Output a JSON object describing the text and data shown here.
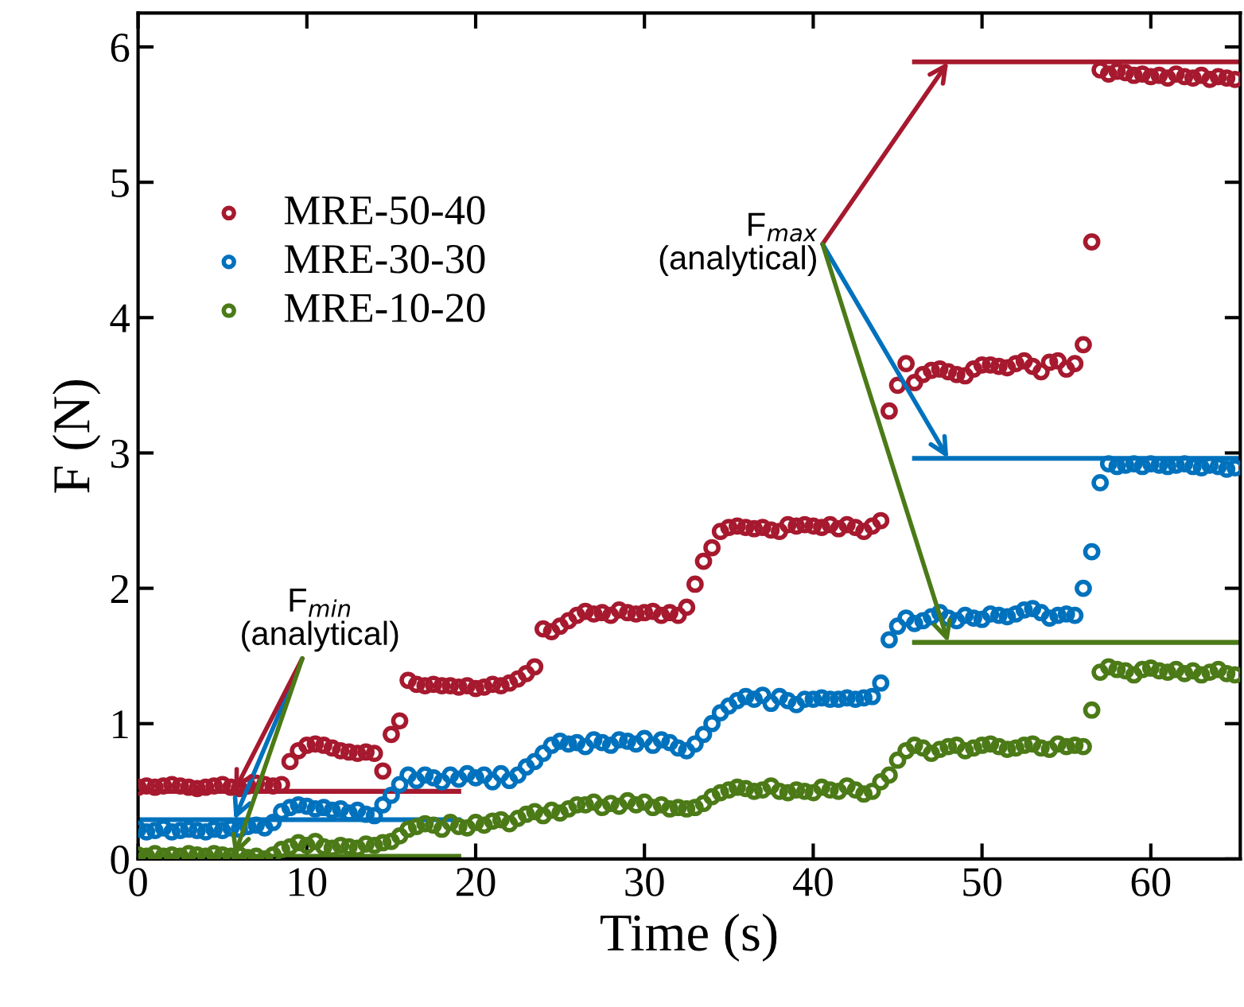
{
  "chart_data": {
    "type": "scatter",
    "xlabel": "Time (s)",
    "ylabel": "F (N)",
    "xlim": [
      0,
      65.3
    ],
    "ylim": [
      0,
      6.25
    ],
    "xticks": [
      0,
      10,
      20,
      30,
      40,
      50,
      60
    ],
    "yticks": [
      0,
      1,
      2,
      3,
      4,
      5,
      6
    ],
    "grid": false,
    "legend": "top left",
    "marker": "circle",
    "x": [
      0,
      0.5,
      1,
      1.5,
      2,
      2.5,
      3,
      3.5,
      4,
      4.5,
      5,
      5.5,
      6,
      6.5,
      7,
      7.5,
      8,
      8.5,
      9,
      9.5,
      10,
      10.5,
      11,
      11.5,
      12,
      12.5,
      13,
      13.5,
      14,
      14.5,
      15,
      15.5,
      16,
      16.5,
      17,
      17.5,
      18,
      18.5,
      19,
      19.5,
      20,
      20.5,
      21,
      21.5,
      22,
      22.5,
      23,
      23.5,
      24,
      24.5,
      25,
      25.5,
      26,
      26.5,
      27,
      27.5,
      28,
      28.5,
      29,
      29.5,
      30,
      30.5,
      31,
      31.5,
      32,
      32.5,
      33,
      33.5,
      34,
      34.5,
      35,
      35.5,
      36,
      36.5,
      37,
      37.5,
      38,
      38.5,
      39,
      39.5,
      40,
      40.5,
      41,
      41.5,
      42,
      42.5,
      43,
      43.5,
      44,
      44.5,
      45,
      45.5,
      46,
      46.5,
      47,
      47.5,
      48,
      48.5,
      49,
      49.5,
      50,
      50.5,
      51,
      51.5,
      52,
      52.5,
      53,
      53.5,
      54,
      54.5,
      55,
      55.5,
      56,
      56.5,
      57,
      57.5,
      58,
      58.5,
      59,
      59.5,
      60,
      60.5,
      61,
      61.5,
      62,
      62.5,
      63,
      63.5,
      64,
      64.5,
      65
    ],
    "series": [
      {
        "name": "MRE-50-40",
        "color": "#a6192e",
        "values": [
          0.53,
          0.54,
          0.53,
          0.54,
          0.55,
          0.54,
          0.53,
          0.52,
          0.53,
          0.54,
          0.55,
          0.53,
          0.52,
          0.54,
          0.56,
          0.55,
          0.54,
          0.55,
          0.72,
          0.8,
          0.84,
          0.85,
          0.84,
          0.82,
          0.8,
          0.79,
          0.78,
          0.79,
          0.78,
          0.65,
          0.92,
          1.02,
          1.32,
          1.29,
          1.28,
          1.29,
          1.28,
          1.28,
          1.27,
          1.28,
          1.26,
          1.27,
          1.29,
          1.28,
          1.3,
          1.33,
          1.37,
          1.42,
          1.7,
          1.68,
          1.72,
          1.76,
          1.8,
          1.83,
          1.81,
          1.82,
          1.8,
          1.84,
          1.82,
          1.81,
          1.82,
          1.83,
          1.8,
          1.82,
          1.8,
          1.86,
          2.03,
          2.2,
          2.3,
          2.42,
          2.45,
          2.46,
          2.45,
          2.44,
          2.45,
          2.43,
          2.42,
          2.47,
          2.46,
          2.47,
          2.46,
          2.45,
          2.47,
          2.44,
          2.47,
          2.45,
          2.42,
          2.46,
          2.5,
          3.31,
          3.5,
          3.66,
          3.52,
          3.58,
          3.61,
          3.62,
          3.6,
          3.58,
          3.57,
          3.62,
          3.65,
          3.65,
          3.64,
          3.63,
          3.66,
          3.68,
          3.64,
          3.6,
          3.67,
          3.68,
          3.62,
          3.66,
          3.8,
          4.56,
          5.83,
          5.8,
          5.82,
          5.81,
          5.79,
          5.8,
          5.78,
          5.79,
          5.77,
          5.8,
          5.78,
          5.77,
          5.79,
          5.76,
          5.78,
          5.77,
          5.76
        ]
      },
      {
        "name": "MRE-30-30",
        "color": "#0072bd",
        "values": [
          0.22,
          0.2,
          0.21,
          0.23,
          0.2,
          0.21,
          0.22,
          0.21,
          0.2,
          0.22,
          0.21,
          0.23,
          0.22,
          0.24,
          0.25,
          0.23,
          0.27,
          0.35,
          0.38,
          0.4,
          0.39,
          0.37,
          0.38,
          0.36,
          0.37,
          0.34,
          0.36,
          0.33,
          0.32,
          0.4,
          0.47,
          0.55,
          0.62,
          0.58,
          0.62,
          0.6,
          0.57,
          0.62,
          0.59,
          0.63,
          0.6,
          0.62,
          0.57,
          0.63,
          0.58,
          0.62,
          0.68,
          0.72,
          0.78,
          0.84,
          0.87,
          0.85,
          0.86,
          0.83,
          0.88,
          0.86,
          0.84,
          0.88,
          0.87,
          0.85,
          0.89,
          0.84,
          0.88,
          0.86,
          0.82,
          0.8,
          0.85,
          0.92,
          1.0,
          1.08,
          1.13,
          1.17,
          1.2,
          1.18,
          1.21,
          1.15,
          1.2,
          1.17,
          1.14,
          1.18,
          1.18,
          1.19,
          1.18,
          1.18,
          1.19,
          1.18,
          1.19,
          1.2,
          1.3,
          1.62,
          1.72,
          1.78,
          1.74,
          1.76,
          1.79,
          1.82,
          1.78,
          1.76,
          1.8,
          1.78,
          1.77,
          1.81,
          1.8,
          1.79,
          1.81,
          1.84,
          1.85,
          1.82,
          1.78,
          1.8,
          1.81,
          1.8,
          2.0,
          2.27,
          2.78,
          2.92,
          2.9,
          2.91,
          2.92,
          2.9,
          2.92,
          2.91,
          2.9,
          2.91,
          2.92,
          2.9,
          2.89,
          2.91,
          2.9,
          2.88,
          2.89
        ]
      },
      {
        "name": "MRE-10-20",
        "color": "#4b7a17",
        "values": [
          0.03,
          0.02,
          0.04,
          0.02,
          0.03,
          0.02,
          0.04,
          0.03,
          0.02,
          0.04,
          0.03,
          0.02,
          0.03,
          0.01,
          0.02,
          0.0,
          0.03,
          0.07,
          0.09,
          0.12,
          0.1,
          0.13,
          0.09,
          0.08,
          0.1,
          0.09,
          0.08,
          0.11,
          0.1,
          0.12,
          0.13,
          0.17,
          0.22,
          0.24,
          0.26,
          0.25,
          0.22,
          0.27,
          0.24,
          0.23,
          0.27,
          0.25,
          0.28,
          0.29,
          0.26,
          0.3,
          0.33,
          0.35,
          0.32,
          0.36,
          0.34,
          0.37,
          0.4,
          0.4,
          0.42,
          0.38,
          0.41,
          0.39,
          0.43,
          0.4,
          0.42,
          0.38,
          0.4,
          0.37,
          0.38,
          0.37,
          0.38,
          0.41,
          0.46,
          0.49,
          0.51,
          0.53,
          0.52,
          0.5,
          0.51,
          0.54,
          0.5,
          0.49,
          0.51,
          0.5,
          0.49,
          0.53,
          0.51,
          0.5,
          0.54,
          0.51,
          0.48,
          0.5,
          0.57,
          0.62,
          0.73,
          0.8,
          0.84,
          0.82,
          0.78,
          0.81,
          0.83,
          0.84,
          0.8,
          0.82,
          0.84,
          0.85,
          0.83,
          0.81,
          0.82,
          0.84,
          0.85,
          0.82,
          0.81,
          0.85,
          0.83,
          0.84,
          0.83,
          1.1,
          1.38,
          1.42,
          1.4,
          1.39,
          1.36,
          1.4,
          1.41,
          1.39,
          1.38,
          1.4,
          1.37,
          1.39,
          1.36,
          1.38,
          1.4,
          1.37,
          1.36
        ]
      },
      {
        "type": "line",
        "marker": "none",
        "color": "#a6192e",
        "x": [
          0,
          19
        ],
        "values": [
          0.5,
          0.5
        ]
      },
      {
        "type": "line",
        "marker": "none",
        "color": "#0072bd",
        "x": [
          0,
          19
        ],
        "values": [
          0.29,
          0.29
        ]
      },
      {
        "type": "line",
        "marker": "none",
        "color": "#4b7a17",
        "x": [
          0,
          19
        ],
        "values": [
          0.02,
          0.02
        ]
      },
      {
        "type": "line",
        "marker": "none",
        "color": "#a6192e",
        "x": [
          46,
          65.3
        ],
        "values": [
          5.89,
          5.89
        ]
      },
      {
        "type": "line",
        "marker": "none",
        "color": "#0072bd",
        "x": [
          46,
          65.3
        ],
        "values": [
          2.96,
          2.96
        ]
      },
      {
        "type": "line",
        "marker": "none",
        "color": "#4b7a17",
        "x": [
          46,
          65.3
        ],
        "values": [
          1.6,
          1.6
        ]
      }
    ],
    "annotations": [
      {
        "text": "F$_{min}$\n(analytical)",
        "x": 5.7,
        "y": 0.29
      },
      {
        "text": "F$_{max}$\n(analytical)",
        "x": 48,
        "y": 2.96
      }
    ]
  }
}
